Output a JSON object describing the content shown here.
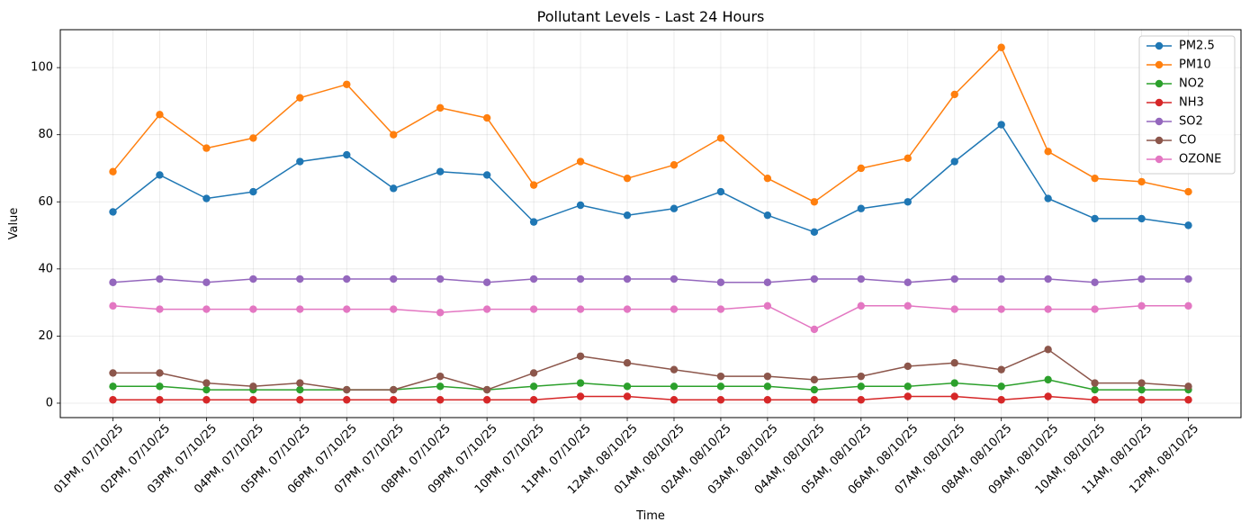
{
  "chart_data": {
    "type": "line",
    "title": "Pollutant Levels - Last 24 Hours",
    "xlabel": "Time",
    "ylabel": "Value",
    "ylim": [
      -4.3,
      111.3
    ],
    "yticks": [
      0,
      20,
      40,
      60,
      80,
      100
    ],
    "grid": true,
    "legend_position": "top-right",
    "categories": [
      "01PM, 07/10/25",
      "02PM, 07/10/25",
      "03PM, 07/10/25",
      "04PM, 07/10/25",
      "05PM, 07/10/25",
      "06PM, 07/10/25",
      "07PM, 07/10/25",
      "08PM, 07/10/25",
      "09PM, 07/10/25",
      "10PM, 07/10/25",
      "11PM, 07/10/25",
      "12AM, 08/10/25",
      "01AM, 08/10/25",
      "02AM, 08/10/25",
      "03AM, 08/10/25",
      "04AM, 08/10/25",
      "05AM, 08/10/25",
      "06AM, 08/10/25",
      "07AM, 08/10/25",
      "08AM, 08/10/25",
      "09AM, 08/10/25",
      "10AM, 08/10/25",
      "11AM, 08/10/25",
      "12PM, 08/10/25"
    ],
    "series": [
      {
        "name": "PM2.5",
        "color": "#1f77b4",
        "values": [
          57,
          68,
          61,
          63,
          72,
          74,
          64,
          69,
          68,
          54,
          59,
          56,
          58,
          63,
          56,
          51,
          58,
          60,
          72,
          83,
          61,
          55,
          55,
          53
        ]
      },
      {
        "name": "PM10",
        "color": "#ff7f0e",
        "values": [
          69,
          86,
          76,
          79,
          91,
          95,
          80,
          88,
          85,
          65,
          72,
          67,
          71,
          79,
          67,
          60,
          70,
          73,
          92,
          106,
          75,
          67,
          66,
          63
        ]
      },
      {
        "name": "NO2",
        "color": "#2ca02c",
        "values": [
          5,
          5,
          4,
          4,
          4,
          4,
          4,
          5,
          4,
          5,
          6,
          5,
          5,
          5,
          5,
          4,
          5,
          5,
          6,
          5,
          7,
          4,
          4,
          4
        ]
      },
      {
        "name": "NH3",
        "color": "#d62728",
        "values": [
          1,
          1,
          1,
          1,
          1,
          1,
          1,
          1,
          1,
          1,
          2,
          2,
          1,
          1,
          1,
          1,
          1,
          2,
          2,
          1,
          2,
          1,
          1,
          1
        ]
      },
      {
        "name": "SO2",
        "color": "#9467bd",
        "values": [
          36,
          37,
          36,
          37,
          37,
          37,
          37,
          37,
          36,
          37,
          37,
          37,
          37,
          36,
          36,
          37,
          37,
          36,
          37,
          37,
          37,
          36,
          37,
          37
        ]
      },
      {
        "name": "CO",
        "color": "#8c564b",
        "values": [
          9,
          9,
          6,
          5,
          6,
          4,
          4,
          8,
          4,
          9,
          14,
          12,
          10,
          8,
          8,
          7,
          8,
          11,
          12,
          10,
          16,
          6,
          6,
          5
        ]
      },
      {
        "name": "OZONE",
        "color": "#e377c2",
        "values": [
          29,
          28,
          28,
          28,
          28,
          28,
          28,
          27,
          28,
          28,
          28,
          28,
          28,
          28,
          29,
          22,
          29,
          29,
          28,
          28,
          28,
          28,
          29,
          29
        ]
      }
    ]
  }
}
